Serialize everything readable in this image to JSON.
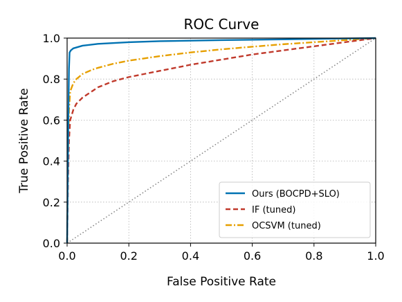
{
  "chart_data": {
    "type": "line",
    "title": "ROC Curve",
    "xlabel": "False Positive Rate",
    "ylabel": "True Positive Rate",
    "xlim": [
      0.0,
      1.0
    ],
    "ylim": [
      0.0,
      1.0
    ],
    "xticks": [
      "0.0",
      "0.2",
      "0.4",
      "0.6",
      "0.8",
      "1.0"
    ],
    "yticks": [
      "0.0",
      "0.2",
      "0.4",
      "0.6",
      "0.8",
      "1.0"
    ],
    "grid": true,
    "legend_position": "lower-right",
    "diagonal": {
      "style": "dotted",
      "color": "#808080",
      "points": [
        [
          0,
          0
        ],
        [
          1,
          1
        ]
      ]
    },
    "series": [
      {
        "name": "Ours (BOCPD+SLO)",
        "style": "solid",
        "color": "#0072B2",
        "points": [
          [
            0,
            0
          ],
          [
            0.002,
            0.3
          ],
          [
            0.004,
            0.6
          ],
          [
            0.006,
            0.85
          ],
          [
            0.008,
            0.93
          ],
          [
            0.012,
            0.94
          ],
          [
            0.02,
            0.95
          ],
          [
            0.05,
            0.963
          ],
          [
            0.1,
            0.972
          ],
          [
            0.2,
            0.98
          ],
          [
            0.3,
            0.985
          ],
          [
            0.5,
            0.99
          ],
          [
            0.7,
            0.994
          ],
          [
            0.9,
            0.998
          ],
          [
            1.0,
            1.0
          ]
        ]
      },
      {
        "name": "IF (tuned)",
        "style": "dashed",
        "color": "#C0392B",
        "points": [
          [
            0,
            0
          ],
          [
            0.003,
            0.3
          ],
          [
            0.006,
            0.5
          ],
          [
            0.01,
            0.6
          ],
          [
            0.02,
            0.65
          ],
          [
            0.03,
            0.68
          ],
          [
            0.05,
            0.71
          ],
          [
            0.08,
            0.74
          ],
          [
            0.1,
            0.76
          ],
          [
            0.15,
            0.79
          ],
          [
            0.2,
            0.81
          ],
          [
            0.3,
            0.84
          ],
          [
            0.4,
            0.87
          ],
          [
            0.5,
            0.895
          ],
          [
            0.6,
            0.92
          ],
          [
            0.7,
            0.94
          ],
          [
            0.8,
            0.96
          ],
          [
            0.9,
            0.98
          ],
          [
            1.0,
            1.0
          ]
        ]
      },
      {
        "name": "OCSVM (tuned)",
        "style": "dashdot",
        "color": "#E69F00",
        "points": [
          [
            0,
            0
          ],
          [
            0.003,
            0.4
          ],
          [
            0.006,
            0.65
          ],
          [
            0.01,
            0.74
          ],
          [
            0.02,
            0.78
          ],
          [
            0.03,
            0.8
          ],
          [
            0.05,
            0.825
          ],
          [
            0.08,
            0.845
          ],
          [
            0.1,
            0.855
          ],
          [
            0.15,
            0.875
          ],
          [
            0.2,
            0.89
          ],
          [
            0.3,
            0.912
          ],
          [
            0.4,
            0.93
          ],
          [
            0.5,
            0.945
          ],
          [
            0.6,
            0.958
          ],
          [
            0.7,
            0.97
          ],
          [
            0.8,
            0.98
          ],
          [
            0.9,
            0.99
          ],
          [
            1.0,
            1.0
          ]
        ]
      }
    ]
  }
}
